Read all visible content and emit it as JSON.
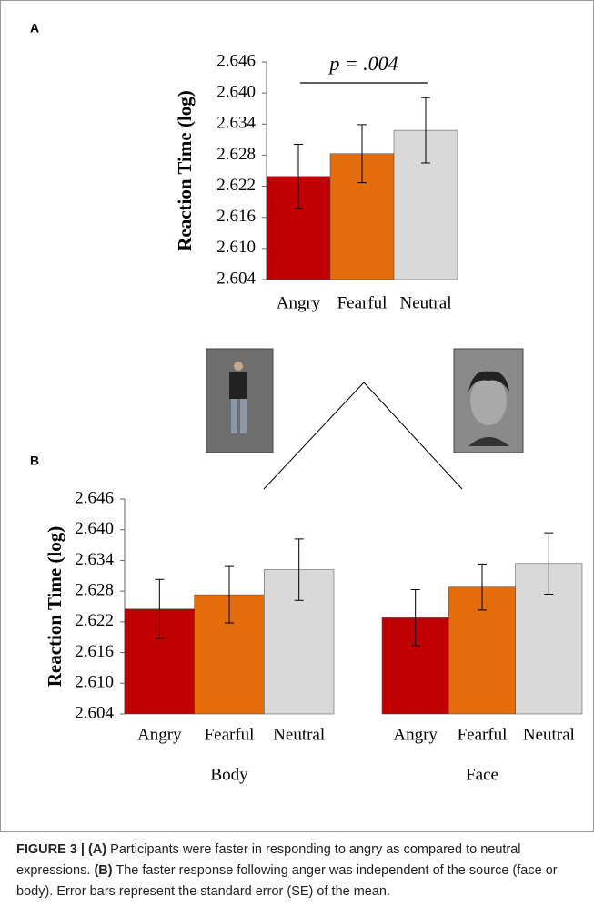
{
  "panel_labels": [
    "A",
    "B"
  ],
  "chart_data": [
    {
      "type": "bar",
      "y_label": "Reaction Time (log)",
      "annotation": "p = .004",
      "categories": [
        "Angry",
        "Fearful",
        "Neutral"
      ],
      "values": [
        2.6239,
        2.6283,
        2.6328
      ],
      "errors": [
        0.0062,
        0.0056,
        0.0063
      ],
      "colors": [
        "#c00000",
        "#e46c0a",
        "#d9d9d9"
      ],
      "ylim": [
        2.604,
        2.646
      ],
      "yticks": [
        2.604,
        {
          "value": 2.61,
          "label": "2.610"
        },
        2.616,
        2.622,
        2.628,
        2.634,
        {
          "value": 2.64,
          "label": "2.640"
        },
        2.646
      ]
    },
    {
      "type": "grouped-bar",
      "y_label": "Reaction Time (log)",
      "categories": [
        "Body",
        "Face"
      ],
      "series": [
        {
          "name": "Angry",
          "color": "#c00000",
          "values": [
            2.6245,
            2.6228
          ],
          "errors": [
            0.0058,
            0.0055
          ]
        },
        {
          "name": "Fearful",
          "color": "#e46c0a",
          "values": [
            2.6273,
            2.6288
          ],
          "errors": [
            0.0055,
            0.0045
          ]
        },
        {
          "name": "Neutral",
          "color": "#d9d9d9",
          "values": [
            2.6322,
            2.6334
          ],
          "errors": [
            0.006,
            0.006
          ]
        }
      ],
      "ylim": [
        2.604,
        2.646
      ],
      "yticks": [
        2.604,
        {
          "value": 2.61,
          "label": "2.610"
        },
        2.616,
        2.622,
        2.628,
        2.634,
        {
          "value": 2.64,
          "label": "2.640"
        },
        2.646
      ]
    }
  ],
  "caption": {
    "label": "FIGURE 3 |",
    "a_label": "(A)",
    "a_text": "Participants were faster in responding to angry as compared to neutral expressions.",
    "b_label": "(B)",
    "b_text": "The faster response following anger was independent of the source (face or body). Error bars represent the standard error (SE) of the mean."
  }
}
